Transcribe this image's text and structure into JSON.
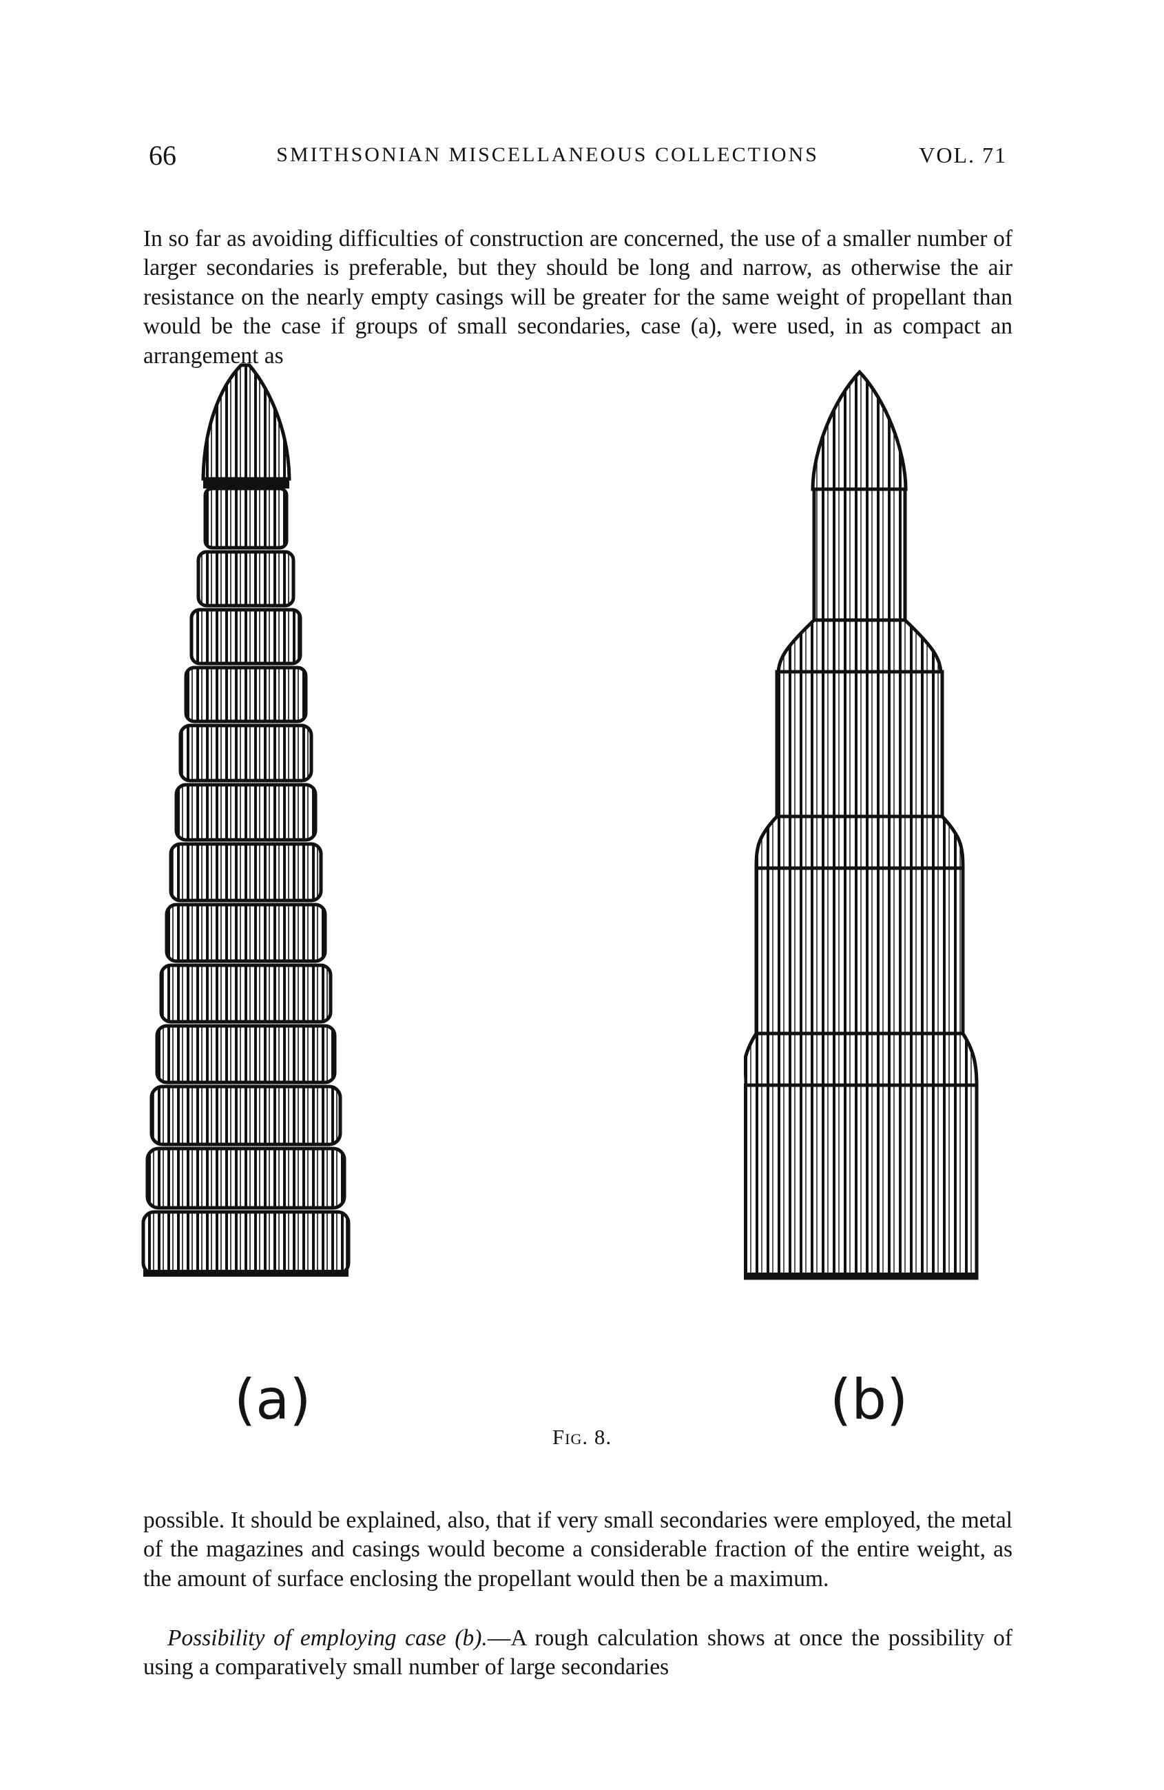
{
  "header": {
    "page_number": "66",
    "running_title": "SMITHSONIAN MISCELLANEOUS COLLECTIONS",
    "volume": "VOL. 71"
  },
  "paragraphs": {
    "top": "In so far as avoiding difficulties of construction are concerned, the use of a smaller number of larger secondaries is preferable, but they should be long and narrow, as otherwise the air resistance on the nearly empty casings will be greater for the same weight of propellant than would be the case if groups of small secondaries, case (a), were used, in as compact an arrangement as",
    "bottom": "possible. It should be explained, also, that if very small secondaries were employed, the metal of the magazines and casings would become a considerable fraction of the entire weight, as the amount of surface enclosing the propellant would then be a maximum.",
    "sub_heading": "Possibility of employing case (b).",
    "sub_text": "—A rough calculation shows at once the possibility of using a comparatively small number of large secondaries"
  },
  "figure": {
    "label_a": "(a)",
    "label_b": "(b)",
    "caption_prefix": "Fig.",
    "caption_number": "8."
  }
}
